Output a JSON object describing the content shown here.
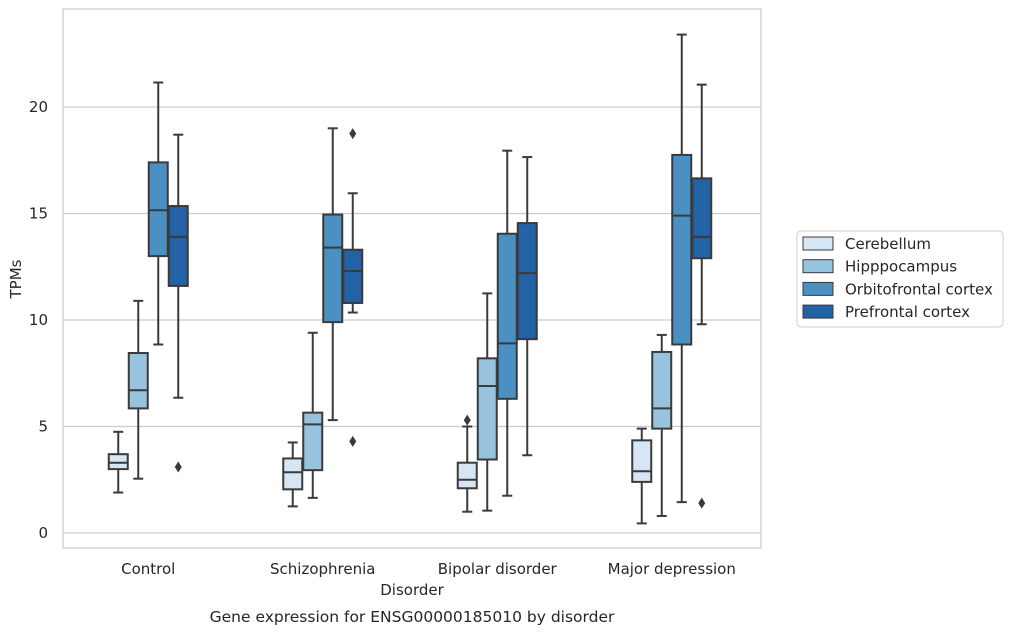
{
  "caption": "Gene expression for ENSG00000185010 by disorder",
  "chart_data": {
    "type": "box",
    "xlabel": "Disorder",
    "ylabel": "TPMs",
    "ylim": [
      -0.7,
      24.8
    ],
    "yticks": [
      0,
      5,
      10,
      15,
      20
    ],
    "grid": true,
    "legend_position": "right",
    "categories": [
      "Control",
      "Schizophrenia",
      "Bipolar disorder",
      "Major depression"
    ],
    "series": [
      {
        "name": "Cerebellum",
        "color": "#d7e6f4",
        "boxes": [
          {
            "whislo": 1.9,
            "q1": 3.0,
            "med": 3.3,
            "q3": 3.7,
            "whishi": 4.75,
            "fliers": []
          },
          {
            "whislo": 1.25,
            "q1": 2.05,
            "med": 2.85,
            "q3": 3.5,
            "whishi": 4.25,
            "fliers": []
          },
          {
            "whislo": 1.0,
            "q1": 2.1,
            "med": 2.5,
            "q3": 3.3,
            "whishi": 5.0,
            "fliers": [
              5.3
            ]
          },
          {
            "whislo": 0.45,
            "q1": 2.4,
            "med": 2.9,
            "q3": 4.35,
            "whishi": 4.9,
            "fliers": []
          }
        ]
      },
      {
        "name": "Hipppocampus",
        "color": "#98c3de",
        "boxes": [
          {
            "whislo": 2.55,
            "q1": 5.85,
            "med": 6.7,
            "q3": 8.45,
            "whishi": 10.9,
            "fliers": []
          },
          {
            "whislo": 1.65,
            "q1": 2.95,
            "med": 5.1,
            "q3": 5.65,
            "whishi": 9.4,
            "fliers": []
          },
          {
            "whislo": 1.05,
            "q1": 3.45,
            "med": 6.9,
            "q3": 8.2,
            "whishi": 11.25,
            "fliers": []
          },
          {
            "whislo": 0.8,
            "q1": 4.9,
            "med": 5.85,
            "q3": 8.5,
            "whishi": 9.3,
            "fliers": []
          }
        ]
      },
      {
        "name": "Orbitofrontal cortex",
        "color": "#4a90c3",
        "boxes": [
          {
            "whislo": 8.85,
            "q1": 13.0,
            "med": 15.15,
            "q3": 17.4,
            "whishi": 21.15,
            "fliers": []
          },
          {
            "whislo": 5.3,
            "q1": 9.9,
            "med": 13.4,
            "q3": 14.95,
            "whishi": 19.0,
            "fliers": []
          },
          {
            "whislo": 1.75,
            "q1": 6.3,
            "med": 8.9,
            "q3": 14.05,
            "whishi": 17.95,
            "fliers": []
          },
          {
            "whislo": 1.45,
            "q1": 8.85,
            "med": 14.9,
            "q3": 17.75,
            "whishi": 23.4,
            "fliers": []
          }
        ]
      },
      {
        "name": "Prefrontal cortex",
        "color": "#2262a5",
        "boxes": [
          {
            "whislo": 6.35,
            "q1": 11.6,
            "med": 13.9,
            "q3": 15.35,
            "whishi": 18.7,
            "fliers": [
              3.1
            ]
          },
          {
            "whislo": 10.35,
            "q1": 10.8,
            "med": 12.3,
            "q3": 13.3,
            "whishi": 15.95,
            "fliers": [
              18.75,
              4.3
            ]
          },
          {
            "whislo": 3.65,
            "q1": 9.1,
            "med": 12.2,
            "q3": 14.55,
            "whishi": 17.65,
            "fliers": []
          },
          {
            "whislo": 9.8,
            "q1": 12.9,
            "med": 13.9,
            "q3": 16.65,
            "whishi": 21.05,
            "fliers": [
              1.4
            ]
          }
        ]
      }
    ]
  }
}
